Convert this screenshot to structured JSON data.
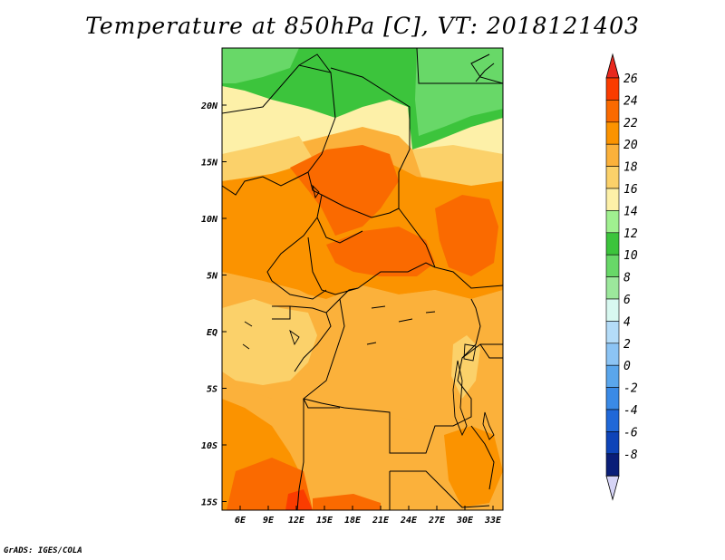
{
  "title": "Temperature at 850hPa [C], VT: 2018121403",
  "credit": "GrADS: IGES/COLA",
  "lon_labels": [
    "6E",
    "9E",
    "12E",
    "15E",
    "18E",
    "21E",
    "24E",
    "27E",
    "30E",
    "33E"
  ],
  "lat_labels": [
    "20N",
    "15N",
    "10N",
    "5N",
    "EQ",
    "5S",
    "10S",
    "15S"
  ],
  "colorbar": {
    "labels": [
      "26",
      "24",
      "22",
      "20",
      "18",
      "16",
      "14",
      "12",
      "10",
      "8",
      "6",
      "4",
      "2",
      "0",
      "-2",
      "-4",
      "-6",
      "-8"
    ],
    "colors": [
      "#fa3c00",
      "#fa6a00",
      "#fb9300",
      "#fbb13b",
      "#fbd16a",
      "#fdf0a8",
      "#a0f090",
      "#3cc43c",
      "#68d868",
      "#9ce89c",
      "#d8f8f0",
      "#b4dcf8",
      "#8cc4f4",
      "#5aa6ec",
      "#3a8ae6",
      "#2068d8",
      "#0e44b8",
      "#0a1e78"
    ],
    "top_arrow_color": "#e8281e",
    "bottom_arrow_color": "#d6d4f6"
  },
  "palette": {
    "green_dark": "#3cc43c",
    "green_light": "#68d868",
    "pale_yellow": "#fdf0a8",
    "yellow": "#fbd16a",
    "light_orange": "#fbb13b",
    "orange": "#fb9300",
    "dark_orange": "#fa6a00",
    "red_orange": "#fa3c00"
  }
}
